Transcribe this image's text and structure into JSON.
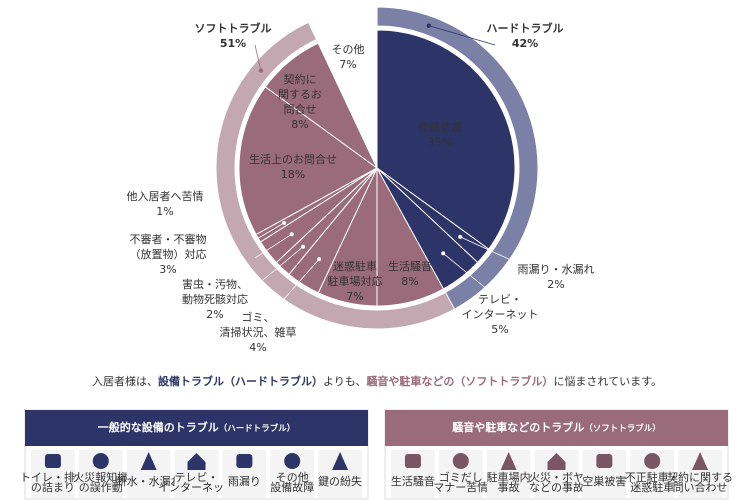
{
  "chart_data": {
    "type": "pie",
    "categories": [
      [
        "修繕依頼"
      ],
      [
        "雨漏り・水漏れ"
      ],
      [
        "テレビ・",
        "インターネット"
      ],
      [
        "生活騒音"
      ],
      [
        "迷惑駐車",
        "駐車場対応"
      ],
      [
        "ゴミ、",
        "清掃状況、雑草"
      ],
      [
        "害虫・汚物、",
        "動物死骸対応"
      ],
      [
        "不審者・不審物",
        "（放置物）対応"
      ],
      [
        "他入居者へ苦情"
      ],
      [
        "生活上のお問合せ"
      ],
      [
        "契約に",
        "関するお",
        "問合せ"
      ],
      [
        "その他"
      ]
    ],
    "values": [
      35,
      2,
      5,
      8,
      7,
      4,
      2,
      3,
      1,
      18,
      8,
      7
    ],
    "value_labels": [
      "35%",
      "2%",
      "5%",
      "8%",
      "7%",
      "4%",
      "2%",
      "3%",
      "1%",
      "18%",
      "8%",
      "7%"
    ],
    "colors": [
      "#2d3468",
      "#2d3468",
      "#2d3468",
      "#9a6b7b",
      "#9a6b7b",
      "#9a6b7b",
      "#9a6b7b",
      "#9a6b7b",
      "#9a6b7b",
      "#9a6b7b",
      "#9a6b7b",
      "#ffffff"
    ],
    "groups": {
      "names": [
        "ハードトラブル",
        "ソフトトラブル"
      ],
      "values": [
        42,
        51
      ],
      "value_labels": [
        "42%",
        "51%"
      ],
      "colors": [
        "#7a80a6",
        "#c3a7b1"
      ],
      "text_colors": [
        "#2d3468",
        "#9a6b7b"
      ]
    }
  },
  "sentence": [
    "入居者様は、",
    "設備トラブル（ハードトラブル）",
    "よりも、",
    "騒音や駐車などの（ソフトトラブル）",
    "に悩まされています。"
  ],
  "panels": [
    {
      "title": "一般的な設備のトラブル",
      "subtitle": "（ハードトラブル）",
      "color": "#2d3468",
      "items": [
        [
          "トイレ・排水",
          "の詰まり"
        ],
        [
          "火災報知機",
          "の誤作動"
        ],
        [
          "断水・水漏れ"
        ],
        [
          "テレビ・",
          "インターネット"
        ],
        [
          "雨漏り"
        ],
        [
          "その他",
          "設備故障"
        ],
        [
          "鍵の紛失"
        ]
      ]
    },
    {
      "title": "騒音や駐車などのトラブル",
      "subtitle": "（ソフトトラブル）",
      "color": "#9a6b7b",
      "items": [
        [
          "生活騒音"
        ],
        [
          "ゴミだし",
          "マナー苦情"
        ],
        [
          "駐車場内",
          "事故"
        ],
        [
          "火災・ボヤ",
          "などの事故"
        ],
        [
          "空巣被害"
        ],
        [
          "不正駐車・",
          "迷惑駐車"
        ],
        [
          "契約に関する",
          "問い合わせ"
        ]
      ]
    }
  ]
}
